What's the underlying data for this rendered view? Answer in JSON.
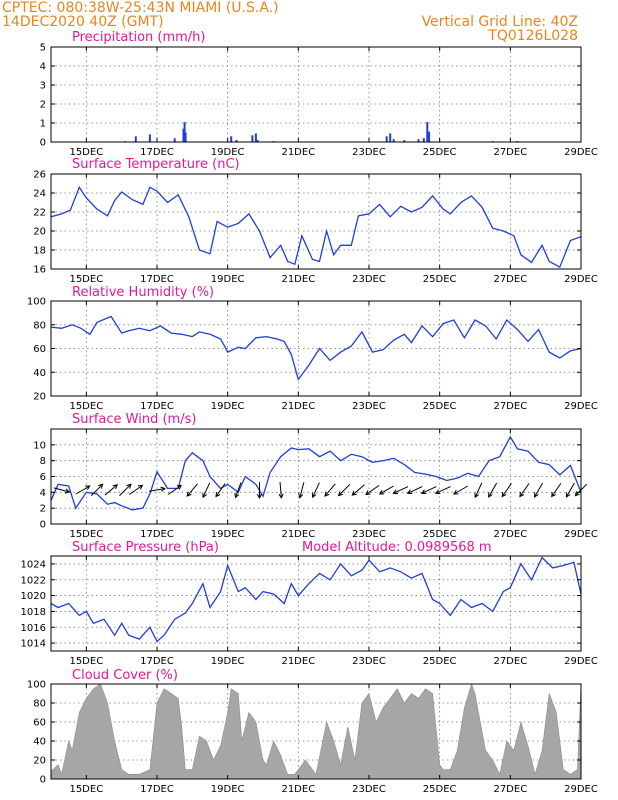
{
  "header": {
    "line1": "CPTEC:   080:38W-25:43N  MIAMI (U.S.A.)",
    "line2": "14DEC2020 40Z (GMT)",
    "right1": "Vertical Grid Line: 40Z",
    "right2": "TQ0126L028",
    "altitude": "Model Altitude: 0.0989568  m"
  },
  "colors": {
    "header": "#e8861e",
    "title": "#e0199c",
    "line": "#1f3fd8",
    "bar": "#1f3fd8",
    "cloud": "#a6a6a6"
  },
  "x_axis": {
    "start_day": 14.0,
    "end_day": 29.0,
    "ticks": [
      {
        "day": 15,
        "label": "15DEC"
      },
      {
        "day": 17,
        "label": "17DEC"
      },
      {
        "day": 19,
        "label": "19DEC"
      },
      {
        "day": 21,
        "label": "21DEC"
      },
      {
        "day": 23,
        "label": "23DEC"
      },
      {
        "day": 25,
        "label": "25DEC"
      },
      {
        "day": 27,
        "label": "27DEC"
      },
      {
        "day": 29,
        "label": "29DEC"
      }
    ]
  },
  "chart_data": [
    {
      "key": "precip",
      "type": "bar",
      "title": "Precipitation (mm/h)",
      "ylim": [
        0,
        5
      ],
      "yticks": [
        0,
        1,
        2,
        3,
        4,
        5
      ],
      "grid": true,
      "bars": [
        [
          16.1,
          0.05
        ],
        [
          16.4,
          0.3
        ],
        [
          16.8,
          0.4
        ],
        [
          17.5,
          0.2
        ],
        [
          17.75,
          0.7
        ],
        [
          17.78,
          1.05
        ],
        [
          17.81,
          0.5
        ],
        [
          19.1,
          0.3
        ],
        [
          19.25,
          0.1
        ],
        [
          19.7,
          0.35
        ],
        [
          19.8,
          0.45
        ],
        [
          19.85,
          0.1
        ],
        [
          20.3,
          0.05
        ],
        [
          23.5,
          0.3
        ],
        [
          23.6,
          0.45
        ],
        [
          23.7,
          0.15
        ],
        [
          24.0,
          0.1
        ],
        [
          24.4,
          0.15
        ],
        [
          24.55,
          0.2
        ],
        [
          24.65,
          1.05
        ],
        [
          24.7,
          0.55
        ],
        [
          26.5,
          0.05
        ],
        [
          27.2,
          0.05
        ]
      ]
    },
    {
      "key": "temp",
      "type": "line",
      "title": "Surface Temperature (nC)",
      "ylim": [
        16,
        26
      ],
      "yticks": [
        16,
        18,
        20,
        22,
        24,
        26
      ],
      "grid": true,
      "x": [
        14.0,
        14.3,
        14.55,
        14.8,
        15.0,
        15.3,
        15.6,
        15.8,
        16.0,
        16.3,
        16.6,
        16.8,
        17.0,
        17.3,
        17.6,
        17.9,
        18.2,
        18.5,
        18.7,
        19.0,
        19.3,
        19.6,
        19.9,
        20.2,
        20.5,
        20.7,
        20.9,
        21.1,
        21.4,
        21.6,
        21.8,
        22.0,
        22.2,
        22.5,
        22.7,
        23.0,
        23.3,
        23.6,
        23.9,
        24.2,
        24.5,
        24.8,
        25.1,
        25.3,
        25.6,
        25.9,
        26.2,
        26.5,
        26.8,
        27.1,
        27.3,
        27.6,
        27.9,
        28.1,
        28.4,
        28.7,
        29.0
      ],
      "y": [
        21.5,
        21.8,
        22.2,
        24.6,
        23.5,
        22.3,
        21.6,
        23.2,
        24.1,
        23.3,
        22.8,
        24.6,
        24.2,
        23.0,
        23.8,
        21.5,
        18.0,
        17.6,
        21.0,
        20.4,
        20.8,
        21.8,
        20.0,
        17.2,
        18.5,
        16.8,
        16.5,
        19.5,
        17.0,
        16.8,
        20.0,
        17.5,
        18.5,
        18.5,
        21.6,
        21.8,
        22.8,
        21.5,
        22.6,
        22.0,
        22.5,
        23.7,
        22.3,
        21.8,
        23.0,
        23.7,
        22.5,
        20.3,
        20.0,
        19.5,
        17.5,
        16.7,
        18.5,
        16.8,
        16.2,
        19.0,
        19.4
      ]
    },
    {
      "key": "rh",
      "type": "line",
      "title": "Relative Humidity (%)",
      "ylim": [
        20,
        100
      ],
      "yticks": [
        20,
        40,
        60,
        80,
        100
      ],
      "grid": true,
      "x": [
        14.0,
        14.3,
        14.6,
        14.85,
        15.1,
        15.3,
        15.7,
        16.0,
        16.2,
        16.5,
        16.8,
        17.1,
        17.4,
        17.7,
        18.0,
        18.2,
        18.5,
        18.8,
        19.0,
        19.3,
        19.5,
        19.8,
        20.1,
        20.4,
        20.6,
        20.8,
        21.0,
        21.3,
        21.6,
        21.9,
        22.2,
        22.5,
        22.8,
        23.1,
        23.4,
        23.7,
        24.0,
        24.2,
        24.5,
        24.8,
        25.1,
        25.4,
        25.7,
        26.0,
        26.3,
        26.6,
        26.9,
        27.2,
        27.5,
        27.8,
        28.1,
        28.4,
        28.7,
        29.0
      ],
      "y": [
        78,
        77,
        80,
        77,
        72,
        82,
        87,
        73,
        75,
        77,
        75,
        79,
        73,
        72,
        70,
        74,
        72,
        68,
        57,
        61,
        60,
        69,
        70,
        68,
        66,
        55,
        34,
        46,
        60,
        50,
        57,
        62,
        74,
        57,
        59,
        67,
        72,
        65,
        79,
        70,
        81,
        84,
        69,
        84,
        79,
        68,
        84,
        76,
        66,
        76,
        57,
        52,
        58,
        60
      ]
    },
    {
      "key": "wind",
      "type": "line",
      "title": "Surface Wind (m/s)",
      "ylim": [
        0,
        12
      ],
      "yticks": [
        0,
        2,
        4,
        6,
        8,
        10
      ],
      "grid": true,
      "x": [
        14.0,
        14.2,
        14.5,
        14.7,
        15.0,
        15.3,
        15.6,
        15.8,
        16.0,
        16.3,
        16.6,
        16.8,
        17.0,
        17.3,
        17.6,
        17.8,
        18.0,
        18.3,
        18.5,
        18.8,
        19.0,
        19.3,
        19.5,
        19.8,
        20.0,
        20.2,
        20.5,
        20.8,
        21.0,
        21.3,
        21.6,
        21.9,
        22.2,
        22.5,
        22.8,
        23.1,
        23.4,
        23.7,
        24.0,
        24.3,
        24.6,
        24.9,
        25.2,
        25.5,
        25.8,
        26.1,
        26.4,
        26.7,
        27.0,
        27.2,
        27.5,
        27.8,
        28.1,
        28.4,
        28.7,
        29.0
      ],
      "y": [
        3.0,
        5.0,
        4.8,
        2.0,
        4.0,
        3.8,
        2.5,
        2.7,
        2.3,
        1.8,
        2.0,
        3.8,
        6.6,
        4.5,
        4.5,
        8.0,
        9.0,
        8.0,
        6.0,
        4.5,
        5.0,
        4.0,
        6.0,
        5.0,
        3.5,
        6.5,
        8.5,
        9.6,
        9.4,
        9.5,
        8.5,
        9.2,
        8.0,
        8.8,
        8.5,
        7.8,
        8.0,
        8.3,
        7.5,
        6.5,
        6.3,
        6.0,
        5.5,
        5.8,
        6.4,
        6.0,
        8.0,
        8.5,
        11.0,
        9.5,
        9.2,
        7.8,
        7.5,
        6.2,
        7.4,
        4.0
      ],
      "vectors": [
        [
          14.3,
          105
        ],
        [
          14.9,
          60
        ],
        [
          15.3,
          45
        ],
        [
          15.7,
          50
        ],
        [
          16.1,
          45
        ],
        [
          16.4,
          55
        ],
        [
          17.0,
          80
        ],
        [
          17.5,
          55
        ],
        [
          18.0,
          220
        ],
        [
          18.4,
          205
        ],
        [
          18.8,
          215
        ],
        [
          19.3,
          200
        ],
        [
          19.9,
          180
        ],
        [
          20.5,
          175
        ],
        [
          21.1,
          195
        ],
        [
          21.5,
          205
        ],
        [
          21.9,
          220
        ],
        [
          22.3,
          225
        ],
        [
          22.7,
          230
        ],
        [
          23.1,
          235
        ],
        [
          23.5,
          240
        ],
        [
          23.9,
          245
        ],
        [
          24.3,
          245
        ],
        [
          24.7,
          245
        ],
        [
          25.1,
          245
        ],
        [
          25.6,
          240
        ],
        [
          26.1,
          205
        ],
        [
          26.5,
          210
        ],
        [
          26.9,
          215
        ],
        [
          27.4,
          215
        ],
        [
          27.8,
          210
        ],
        [
          28.3,
          215
        ],
        [
          28.7,
          210
        ],
        [
          29.0,
          225
        ]
      ]
    },
    {
      "key": "press",
      "type": "line",
      "title": "Surface Pressure (hPa)",
      "ylim": [
        1013,
        1025
      ],
      "yticks": [
        1014,
        1016,
        1018,
        1020,
        1022,
        1024
      ],
      "grid": true,
      "x": [
        14.0,
        14.2,
        14.5,
        14.8,
        15.0,
        15.2,
        15.5,
        15.8,
        16.0,
        16.2,
        16.5,
        16.8,
        17.0,
        17.2,
        17.5,
        17.8,
        18.0,
        18.3,
        18.5,
        18.8,
        19.0,
        19.3,
        19.5,
        19.8,
        20.0,
        20.3,
        20.6,
        20.8,
        21.0,
        21.3,
        21.6,
        21.9,
        22.2,
        22.5,
        22.8,
        23.0,
        23.3,
        23.6,
        23.9,
        24.2,
        24.5,
        24.8,
        25.0,
        25.3,
        25.6,
        25.9,
        26.2,
        26.5,
        26.8,
        27.0,
        27.3,
        27.6,
        27.9,
        28.2,
        28.5,
        28.8,
        29.0
      ],
      "y": [
        1019.0,
        1018.5,
        1019.0,
        1017.5,
        1018.0,
        1016.5,
        1017.0,
        1015.0,
        1016.5,
        1015.0,
        1014.5,
        1016.0,
        1014.2,
        1015.0,
        1017.0,
        1017.8,
        1019.0,
        1021.5,
        1018.5,
        1020.5,
        1023.8,
        1020.5,
        1021.0,
        1019.5,
        1020.5,
        1020.2,
        1019.0,
        1021.5,
        1020.0,
        1021.5,
        1022.8,
        1022.0,
        1024.0,
        1022.5,
        1023.2,
        1024.5,
        1023.0,
        1023.5,
        1023.0,
        1022.2,
        1022.8,
        1019.5,
        1019.0,
        1017.5,
        1019.5,
        1018.5,
        1019.0,
        1018.0,
        1020.5,
        1021.0,
        1024.0,
        1022.0,
        1024.8,
        1023.5,
        1023.8,
        1024.2,
        1020.2
      ]
    },
    {
      "key": "cloud",
      "type": "area",
      "title": "Cloud Cover (%)",
      "ylim": [
        0,
        100
      ],
      "yticks": [
        0,
        20,
        40,
        60,
        80,
        100
      ],
      "grid": true,
      "x": [
        14.0,
        14.2,
        14.3,
        14.5,
        14.6,
        14.8,
        15.0,
        15.2,
        15.4,
        15.5,
        15.6,
        15.8,
        16.0,
        16.2,
        16.5,
        16.8,
        16.9,
        17.0,
        17.2,
        17.4,
        17.6,
        17.7,
        17.8,
        18.0,
        18.2,
        18.4,
        18.6,
        18.8,
        19.0,
        19.1,
        19.3,
        19.4,
        19.6,
        19.8,
        20.0,
        20.1,
        20.3,
        20.5,
        20.7,
        20.9,
        21.2,
        21.5,
        21.8,
        22.0,
        22.2,
        22.4,
        22.6,
        22.8,
        23.0,
        23.2,
        23.4,
        23.6,
        23.8,
        24.0,
        24.2,
        24.4,
        24.6,
        24.8,
        25.0,
        25.1,
        25.3,
        25.5,
        25.7,
        25.9,
        26.0,
        26.1,
        26.3,
        26.5,
        26.7,
        26.9,
        27.1,
        27.3,
        27.5,
        27.7,
        27.9,
        28.1,
        28.3,
        28.5,
        28.7,
        28.9,
        29.0
      ],
      "y": [
        8,
        15,
        5,
        40,
        30,
        70,
        85,
        95,
        100,
        90,
        80,
        40,
        10,
        5,
        5,
        10,
        45,
        80,
        95,
        90,
        85,
        55,
        10,
        10,
        45,
        40,
        20,
        35,
        70,
        95,
        90,
        40,
        70,
        60,
        20,
        15,
        40,
        25,
        5,
        5,
        20,
        5,
        60,
        40,
        15,
        55,
        20,
        80,
        90,
        60,
        75,
        85,
        95,
        80,
        90,
        85,
        95,
        90,
        15,
        10,
        10,
        30,
        75,
        100,
        90,
        70,
        30,
        20,
        5,
        40,
        30,
        60,
        35,
        5,
        30,
        90,
        70,
        10,
        5,
        10,
        100
      ]
    }
  ]
}
